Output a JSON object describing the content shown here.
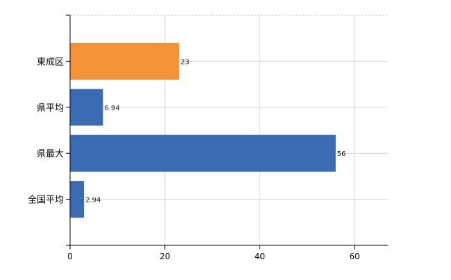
{
  "chart_data": {
    "type": "bar",
    "orientation": "horizontal",
    "categories": [
      "東成区",
      "県平均",
      "県最大",
      "全国平均"
    ],
    "values": [
      23,
      6.94,
      56,
      2.94
    ],
    "value_labels": [
      "23",
      "6.94",
      "56",
      "2.94"
    ],
    "colors": [
      "#F39237",
      "#3A6BB3",
      "#3A6BB3",
      "#3A6BB3"
    ],
    "xlim": [
      0,
      67
    ],
    "xticks": [
      0,
      20,
      40,
      60
    ],
    "xtick_labels": [
      "0",
      "20",
      "40",
      "60"
    ],
    "grid": true,
    "title": "",
    "xlabel": "",
    "ylabel": ""
  }
}
